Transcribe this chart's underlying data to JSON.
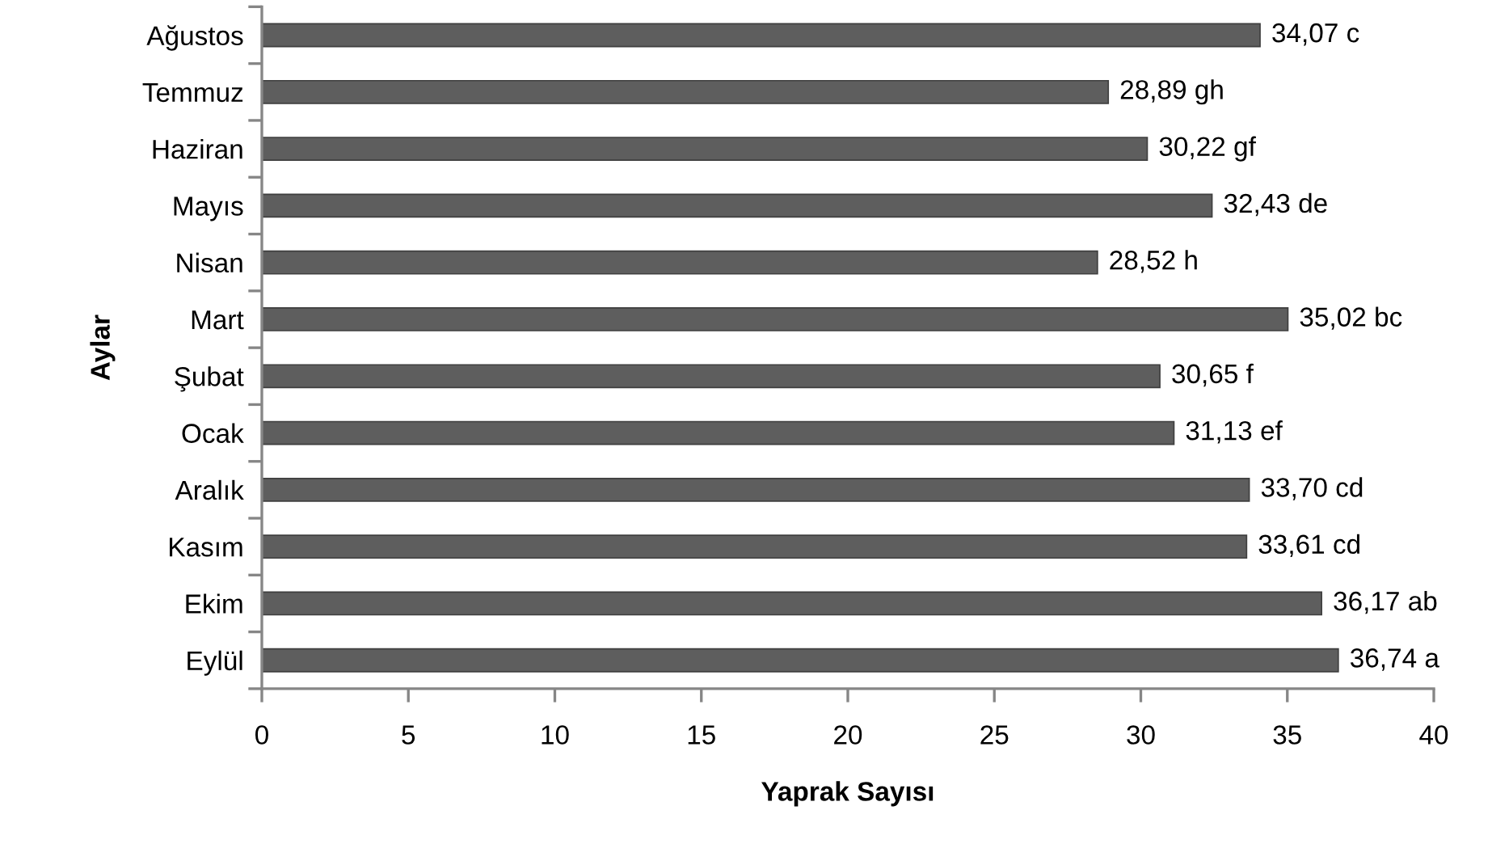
{
  "chart_data": {
    "type": "bar",
    "orientation": "horizontal",
    "xlabel": "Yaprak Sayısı",
    "ylabel": "Aylar",
    "categories": [
      "Ağustos",
      "Temmuz",
      "Haziran",
      "Mayıs",
      "Nisan",
      "Mart",
      "Şubat",
      "Ocak",
      "Aralık",
      "Kasım",
      "Ekim",
      "Eylül"
    ],
    "values": [
      34.07,
      28.89,
      30.22,
      32.43,
      28.52,
      35.02,
      30.65,
      31.13,
      33.7,
      33.61,
      36.17,
      36.74
    ],
    "value_labels": [
      "34,07 c",
      "28,89 gh",
      "30,22 gf",
      "32,43 de",
      "28,52 h",
      "35,02 bc",
      "30,65 f",
      "31,13 ef",
      "33,70 cd",
      "33,61 cd",
      "36,17 ab",
      "36,74 a"
    ],
    "color": "#5e5e5e",
    "xlim": [
      0,
      40
    ],
    "xticks": [
      0,
      5,
      10,
      15,
      20,
      25,
      30,
      35,
      40
    ]
  }
}
